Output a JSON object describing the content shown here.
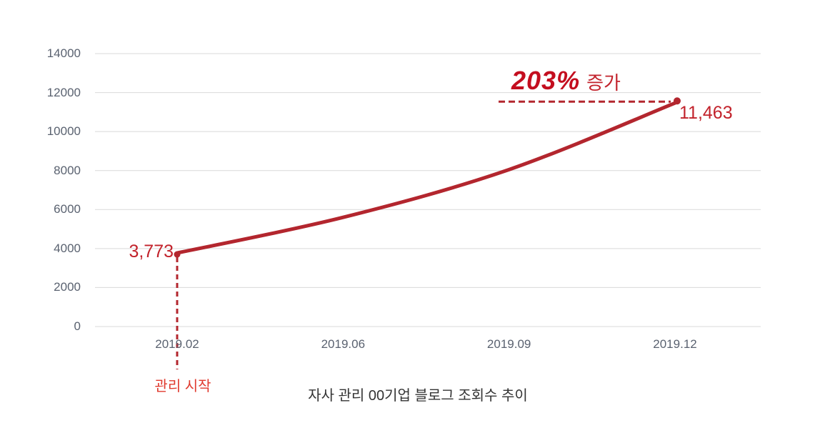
{
  "page": {
    "background": "#ffffff"
  },
  "colors": {
    "line": "#b3262e",
    "marker": "#b3262e",
    "dashed": "#b3262e",
    "value_text": "#c2222b",
    "percent_text": "#c40e1f",
    "start_text": "#e03a2e",
    "axis_text": "#5a6270",
    "grid": "#d9d9d9",
    "title_text": "#333333"
  },
  "chart_data": {
    "type": "line",
    "title": "자사 관리 00기업 블로그 조회수 추이",
    "categories": [
      "2019.02",
      "2019.06",
      "2019.09",
      "2019.12"
    ],
    "series": [
      {
        "name": "블로그 조회수",
        "values": [
          3773,
          5600,
          8050,
          11463
        ]
      }
    ],
    "labeled_points": {
      "first": "3,773",
      "last": "11,463"
    },
    "ylim": [
      0,
      14000
    ],
    "yticks": [
      0,
      2000,
      4000,
      6000,
      8000,
      10000,
      12000,
      14000
    ],
    "grid": true,
    "legend_position": "none",
    "line_style": "smooth",
    "annotations": {
      "percent": "203%",
      "increase_suffix": "증가",
      "start_marker": "관리 시작"
    }
  }
}
